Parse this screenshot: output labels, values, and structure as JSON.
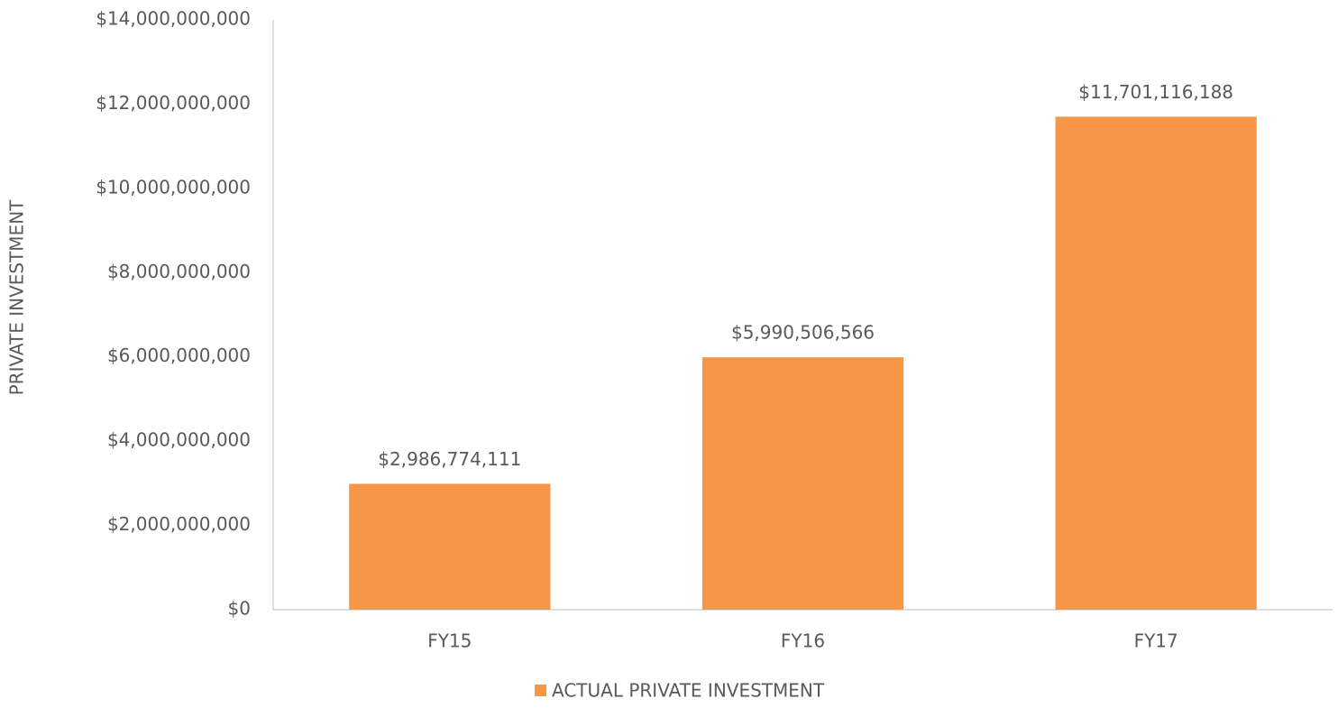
{
  "chart_data": {
    "type": "bar",
    "y_axis_label": "PRIVATE INVESTMENT",
    "categories": [
      "FY15",
      "FY16",
      "FY17"
    ],
    "series": [
      {
        "name": "ACTUAL PRIVATE INVESTMENT",
        "color": "#f79646",
        "values": [
          2986774111,
          5990506566,
          11701116188
        ],
        "value_labels": [
          "$2,986,774,111",
          "$5,990,506,566",
          "$11,701,116,188"
        ]
      }
    ],
    "ylim": [
      0,
      14000000000
    ],
    "yticks": [
      {
        "value": 0,
        "label": "$0"
      },
      {
        "value": 2000000000,
        "label": "$2,000,000,000"
      },
      {
        "value": 4000000000,
        "label": "$4,000,000,000"
      },
      {
        "value": 6000000000,
        "label": "$6,000,000,000"
      },
      {
        "value": 8000000000,
        "label": "$8,000,000,000"
      },
      {
        "value": 10000000000,
        "label": "$10,000,000,000"
      },
      {
        "value": 12000000000,
        "label": "$12,000,000,000"
      },
      {
        "value": 14000000000,
        "label": "$14,000,000,000"
      }
    ],
    "grid": false,
    "legend": "bottom"
  }
}
